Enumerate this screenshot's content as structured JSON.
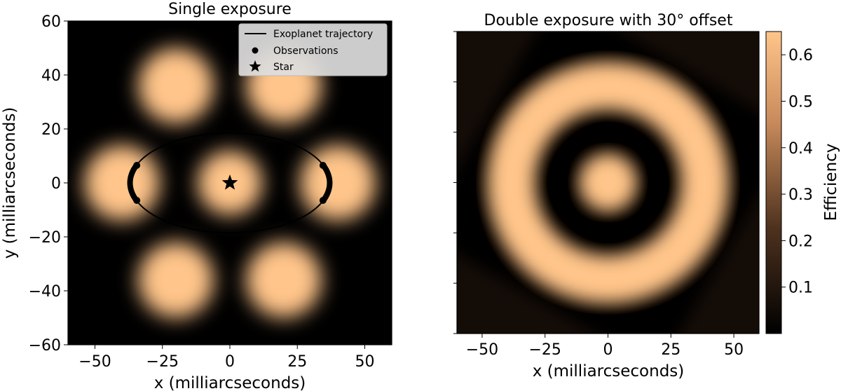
{
  "chart_data": [
    {
      "type": "heatmap",
      "title": "Single exposure",
      "xlabel": "x (milliarcseconds)",
      "ylabel": "y (milliarcseconds)",
      "xlim": [
        -60,
        60
      ],
      "ylim": [
        -60,
        60
      ],
      "xticks": [
        -50,
        -25,
        0,
        25,
        50
      ],
      "yticks": [
        -60,
        -40,
        -20,
        0,
        20,
        40,
        60
      ],
      "xtick_labels": [
        "−50",
        "−25",
        "0",
        "25",
        "50"
      ],
      "ytick_labels": [
        "−60",
        "−40",
        "−20",
        "0",
        "20",
        "40",
        "60"
      ],
      "pattern": "six_lobes",
      "lobe_centers": [
        [
          -20,
          36
        ],
        [
          20,
          36
        ],
        [
          -40,
          0
        ],
        [
          40,
          0
        ],
        [
          -20,
          -36
        ],
        [
          20,
          -36
        ],
        [
          0,
          0
        ]
      ],
      "legend": {
        "placement": "upper right",
        "entries": [
          {
            "label": "Exoplanet trajectory",
            "marker": "line"
          },
          {
            "label": "Observations",
            "marker": "dot"
          },
          {
            "label": "Star",
            "marker": "star"
          }
        ]
      },
      "trajectory": {
        "center": [
          0,
          0
        ],
        "semi_major": 37,
        "semi_minor": 18.5
      },
      "observations": [
        {
          "from": [
            -34.5,
            6.5
          ],
          "to": [
            -34.5,
            -6.5
          ]
        },
        {
          "from": [
            34.5,
            6.5
          ],
          "to": [
            34.5,
            -6.5
          ]
        }
      ],
      "star": [
        0,
        0
      ]
    },
    {
      "type": "heatmap",
      "title": "Double exposure with 30° offset",
      "xlabel": "x (milliarcseconds)",
      "xlim": [
        -60,
        60
      ],
      "ylim": [
        -60,
        60
      ],
      "xticks": [
        -50,
        -25,
        0,
        25,
        50
      ],
      "xtick_labels": [
        "−50",
        "−25",
        "0",
        "25",
        "50"
      ],
      "yticks": [
        -60,
        -40,
        -20,
        0,
        20,
        40,
        60
      ],
      "pattern": "concentric_rings",
      "rotation_offset_deg": 30,
      "colorbar": {
        "label": "Efficiency",
        "range": [
          0,
          0.65
        ],
        "ticks": [
          0.1,
          0.2,
          0.3,
          0.4,
          0.5,
          0.6
        ],
        "tick_labels": [
          "0.1",
          "0.2",
          "0.3",
          "0.4",
          "0.5",
          "0.6"
        ]
      }
    }
  ],
  "colors": {
    "map_low": "#000000",
    "map_high": "#ffc58a",
    "line": "#000000",
    "legend_bg": "#dddddd"
  }
}
